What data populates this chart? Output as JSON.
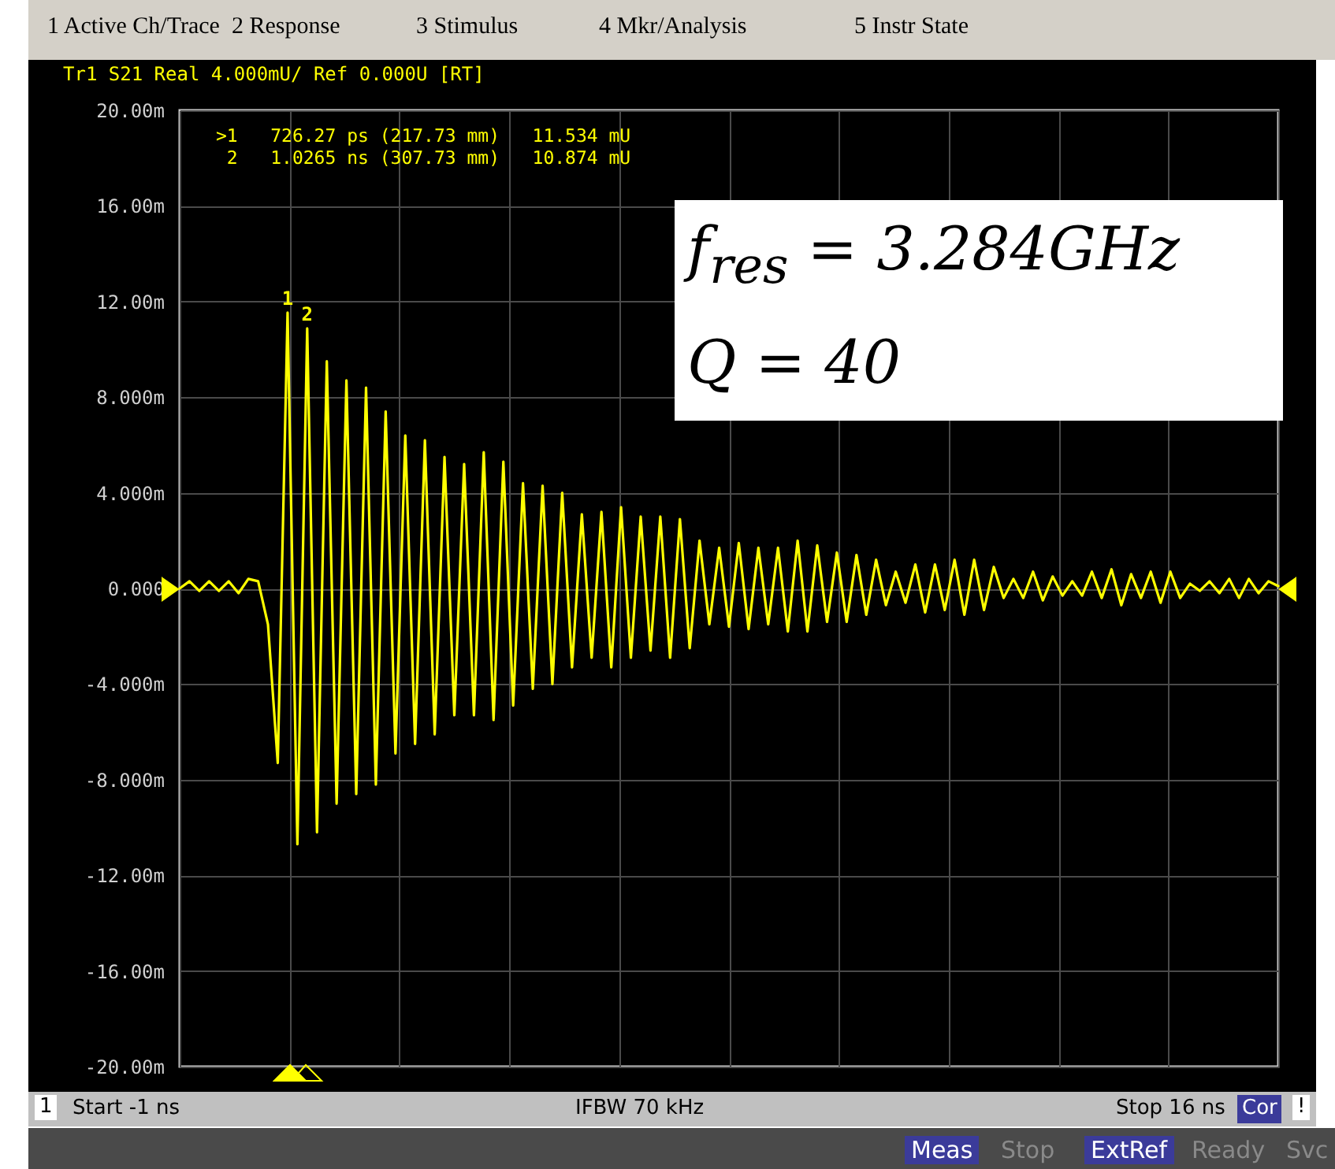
{
  "chart_data": {
    "type": "line",
    "title": "Tr1 S21 Real 4.000mU/ Ref 0.000U [RT]",
    "categories": [
      null,
      null,
      null,
      null,
      null,
      null,
      null,
      null,
      null,
      null,
      null,
      null,
      null,
      null,
      null,
      null,
      null,
      null,
      null,
      null,
      null,
      null,
      null,
      null,
      null,
      null,
      null,
      null,
      null,
      null,
      null,
      null,
      null,
      null,
      null,
      null,
      null,
      null,
      null,
      null,
      null,
      null,
      null,
      null,
      null,
      null,
      null,
      null,
      null,
      null,
      null,
      null,
      null,
      null,
      null,
      null,
      null,
      null,
      null,
      null,
      null,
      null,
      null,
      null,
      null,
      null,
      null,
      null,
      null,
      null,
      null,
      null,
      null,
      null,
      null,
      null,
      null,
      null,
      null,
      null,
      null,
      null,
      null,
      null,
      null,
      null,
      null,
      null,
      null,
      null,
      null,
      null,
      null,
      null,
      null,
      null,
      null,
      null,
      null,
      null,
      null,
      null,
      null,
      null,
      null,
      null,
      null,
      null,
      null,
      null,
      null,
      null,
      null
    ],
    "ylim": [
      -20,
      20
    ],
    "yticks": [
      {
        "value": 20,
        "label": "20.00m"
      },
      {
        "value": 16,
        "label": "16.00m"
      },
      {
        "value": 12,
        "label": "12.00m"
      },
      {
        "value": 8,
        "label": "8.000m"
      },
      {
        "value": 4,
        "label": "4.000m"
      },
      {
        "value": 0,
        "label": "0.000"
      },
      {
        "value": -4,
        "label": "-4.000m"
      },
      {
        "value": -8,
        "label": "-8.000m"
      },
      {
        "value": -12,
        "label": "-12.00m"
      },
      {
        "value": -16,
        "label": "-16.00m"
      },
      {
        "value": -20,
        "label": "-20.00m"
      }
    ],
    "grid": true,
    "tick_labels": "y",
    "marker": "none",
    "line_style": "solid",
    "series": [
      {
        "color": "#ffff00",
        "values": [
          0,
          0.3,
          -0.1,
          0.3,
          -0.1,
          0.3,
          -0.2,
          0.4,
          0.3,
          -1.5,
          -7.3,
          11.534,
          -10.7,
          10.874,
          -10.2,
          9.5,
          -9.0,
          8.7,
          -8.6,
          8.4,
          -8.2,
          7.4,
          -6.9,
          6.4,
          -6.5,
          6.2,
          -6.1,
          5.5,
          -5.3,
          5.2,
          -5.3,
          5.7,
          -5.5,
          5.3,
          -4.9,
          4.4,
          -4.2,
          4.3,
          -4.0,
          4.0,
          -3.3,
          3.1,
          -2.9,
          3.2,
          -3.3,
          3.4,
          -2.9,
          3.0,
          -2.6,
          3.0,
          -2.9,
          2.9,
          -2.5,
          2.0,
          -1.5,
          1.7,
          -1.6,
          1.9,
          -1.7,
          1.7,
          -1.5,
          1.7,
          -1.8,
          2.0,
          -1.8,
          1.8,
          -1.4,
          1.5,
          -1.4,
          1.4,
          -1.1,
          1.2,
          -0.7,
          0.7,
          -0.6,
          1.0,
          -1.0,
          1.0,
          -0.9,
          1.2,
          -1.1,
          1.2,
          -0.9,
          0.9,
          -0.4,
          0.4,
          -0.4,
          0.7,
          -0.5,
          0.5,
          -0.3,
          0.3,
          -0.3,
          0.7,
          -0.4,
          0.8,
          -0.7,
          0.6,
          -0.4,
          0.7,
          -0.6,
          0.7,
          -0.4,
          0.2,
          -0.1,
          0.3,
          -0.2,
          0.4,
          -0.4,
          0.4,
          -0.2,
          0.3,
          0.1
        ]
      }
    ],
    "annotations": [
      "1 Active Ch/Trace",
      "2 Response",
      "3 Stimulus",
      "4 Mkr/Analysis",
      "5 Instr State",
      ">1   726.27 ps (217.73 mm)   11.534 mU",
      " 2   1.0265 ns (307.73 mm)   10.874 mU",
      "f$_{res}$ = 3.284GHz",
      "Q = 40",
      "1",
      "Start -1 ns",
      "IFBW 70 kHz",
      "Stop 16 ns",
      "Cor",
      "!",
      "Meas",
      "Stop",
      "ExtRef",
      "Ready",
      "Svc",
      {
        "text": "1",
        "y": 11.534
      },
      {
        "text": "2",
        "y": 10.874
      }
    ]
  }
}
